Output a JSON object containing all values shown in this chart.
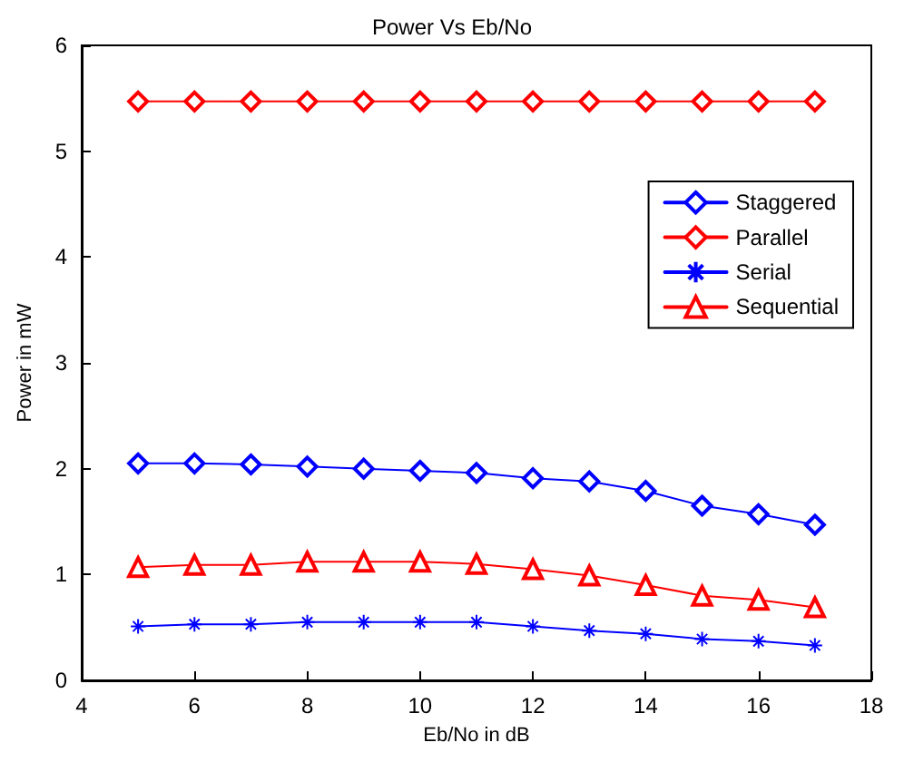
{
  "chart_data": {
    "type": "line",
    "title": "Power Vs Eb/No",
    "xlabel": "Eb/No in dB",
    "ylabel": "Power in mW",
    "x": [
      5,
      6,
      7,
      8,
      9,
      10,
      11,
      12,
      13,
      14,
      15,
      16,
      17
    ],
    "series": [
      {
        "name": "Staggered",
        "color": "#0000ff",
        "marker": "diamond",
        "values": [
          2.05,
          2.05,
          2.04,
          2.02,
          2.0,
          1.98,
          1.96,
          1.91,
          1.88,
          1.79,
          1.65,
          1.57,
          1.47
        ]
      },
      {
        "name": "Parallel",
        "color": "#ff0000",
        "marker": "diamond",
        "values": [
          5.47,
          5.47,
          5.47,
          5.47,
          5.47,
          5.47,
          5.47,
          5.47,
          5.47,
          5.47,
          5.47,
          5.47,
          5.47
        ]
      },
      {
        "name": "Serial",
        "color": "#0000ff",
        "marker": "cross",
        "values": [
          0.51,
          0.53,
          0.53,
          0.55,
          0.55,
          0.55,
          0.55,
          0.51,
          0.47,
          0.44,
          0.39,
          0.37,
          0.33
        ]
      },
      {
        "name": "Sequential",
        "color": "#ff0000",
        "marker": "triangle",
        "values": [
          1.07,
          1.09,
          1.09,
          1.12,
          1.12,
          1.12,
          1.1,
          1.05,
          0.99,
          0.9,
          0.8,
          0.76,
          0.69
        ]
      }
    ],
    "xlim": [
      4,
      18
    ],
    "xticks": [
      4,
      6,
      8,
      10,
      12,
      14,
      16,
      18
    ],
    "ylim": [
      0,
      6
    ],
    "yticks": [
      0,
      1,
      2,
      3,
      4,
      5,
      6
    ],
    "grid": false,
    "legend": "right",
    "line_style": "solid"
  }
}
